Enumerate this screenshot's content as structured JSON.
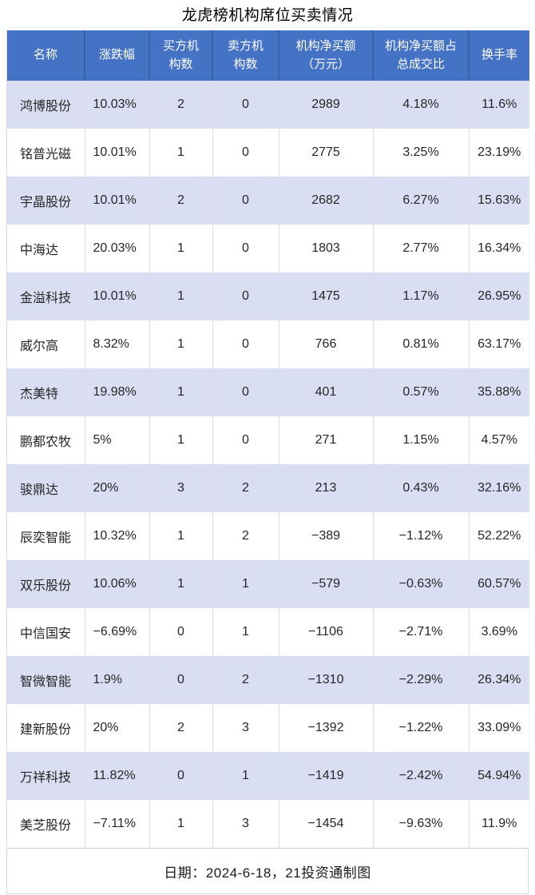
{
  "title": "龙虎榜机构席位买卖情况",
  "column_keys": [
    "name",
    "change-pct",
    "buyer-inst-count",
    "seller-inst-count",
    "inst-net-buy",
    "inst-net-buy-ratio",
    "turnover-rate"
  ],
  "header_display": [
    "名称",
    "涨跌幅",
    "买方机\n构数",
    "卖方机\n构数",
    "机构净买额\n（万元）",
    "机构净买额占\n总成交比",
    "换手率"
  ],
  "chart_data": {
    "type": "table",
    "title": "龙虎榜机构席位买卖情况",
    "columns": [
      "名称",
      "涨跌幅",
      "买方机构数",
      "卖方机构数",
      "机构净买额（万元）",
      "机构净买额占总成交比",
      "换手率"
    ],
    "rows": [
      [
        "鸿博股份",
        "10.03%",
        "2",
        "0",
        "2989",
        "4.18%",
        "11.6%"
      ],
      [
        "铭普光磁",
        "10.01%",
        "1",
        "0",
        "2775",
        "3.25%",
        "23.19%"
      ],
      [
        "宇晶股份",
        "10.01%",
        "2",
        "0",
        "2682",
        "6.27%",
        "15.63%"
      ],
      [
        "中海达",
        "20.03%",
        "1",
        "0",
        "1803",
        "2.77%",
        "16.34%"
      ],
      [
        "金溢科技",
        "10.01%",
        "1",
        "0",
        "1475",
        "1.17%",
        "26.95%"
      ],
      [
        "威尔高",
        "8.32%",
        "1",
        "0",
        "766",
        "0.81%",
        "63.17%"
      ],
      [
        "杰美特",
        "19.98%",
        "1",
        "0",
        "401",
        "0.57%",
        "35.88%"
      ],
      [
        "鹏都农牧",
        "5%",
        "1",
        "0",
        "271",
        "1.15%",
        "4.57%"
      ],
      [
        "骏鼎达",
        "20%",
        "3",
        "2",
        "213",
        "0.43%",
        "32.16%"
      ],
      [
        "辰奕智能",
        "10.32%",
        "1",
        "2",
        "−389",
        "−1.12%",
        "52.22%"
      ],
      [
        "双乐股份",
        "10.06%",
        "1",
        "1",
        "−579",
        "−0.63%",
        "60.57%"
      ],
      [
        "中信国安",
        "−6.69%",
        "0",
        "1",
        "−1106",
        "−2.71%",
        "3.69%"
      ],
      [
        "智微智能",
        "1.9%",
        "0",
        "2",
        "−1310",
        "−2.29%",
        "26.34%"
      ],
      [
        "建新股份",
        "20%",
        "2",
        "3",
        "−1392",
        "−1.22%",
        "33.09%"
      ],
      [
        "万祥科技",
        "11.82%",
        "0",
        "1",
        "−1419",
        "−2.42%",
        "54.94%"
      ],
      [
        "美芝股份",
        "−7.11%",
        "1",
        "3",
        "−1454",
        "−9.63%",
        "11.9%"
      ]
    ],
    "footnote": "日期：2024-6-18，21投资通制图"
  },
  "colors": {
    "header_bg": "#4472c4",
    "header_divider": "#3a5fad",
    "header_text": "#ffffff",
    "band_bg": "#dadef2",
    "row_bg": "#ffffff",
    "body_border": "#d9dcf0",
    "outer_border": "#d2d7ee",
    "text": "#262626"
  }
}
